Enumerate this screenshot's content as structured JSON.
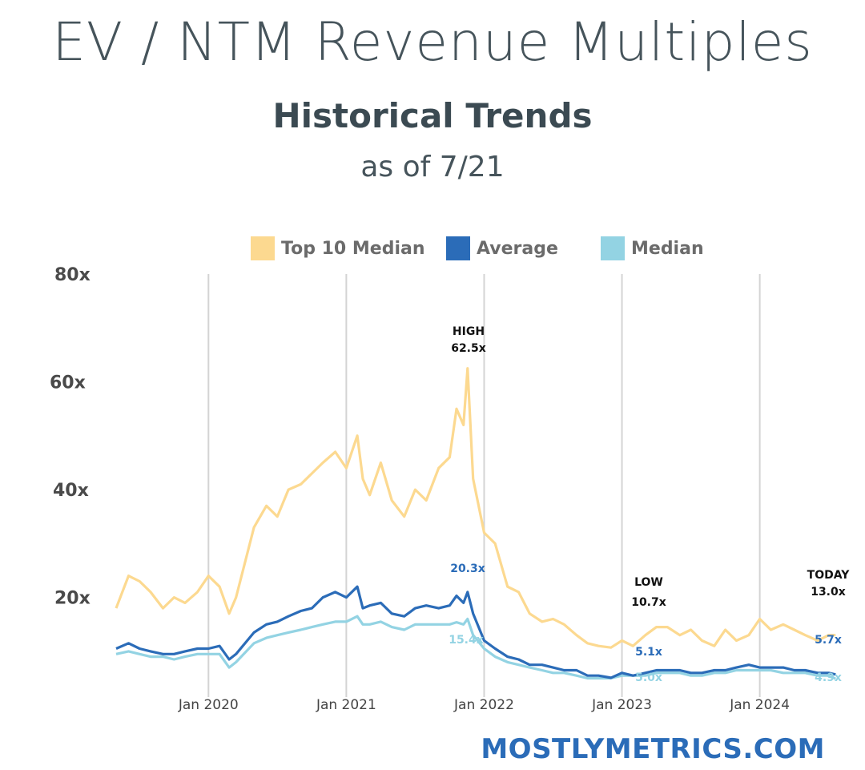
{
  "header": {
    "title": "EV / NTM Revenue Multiples",
    "subtitle": "Historical Trends",
    "as_of": "as of 7/21"
  },
  "legend": [
    {
      "label": "Top 10 Median",
      "color": "#fcd990"
    },
    {
      "label": "Average",
      "color": "#2b6cb8"
    },
    {
      "label": "Median",
      "color": "#93d3e3"
    }
  ],
  "brand": "MOSTLYMETRICS.COM",
  "chart_data": {
    "type": "line",
    "y_ticks": [
      "80x",
      "60x",
      "40x",
      "20x"
    ],
    "y_tick_values": [
      80,
      60,
      40,
      20
    ],
    "ylim": [
      3,
      80
    ],
    "x_ticks": [
      "Jan 2020",
      "Jan 2021",
      "Jan 2022",
      "Jan 2023",
      "Jan 2024"
    ],
    "x_tick_values": [
      2020.0,
      2021.0,
      2022.0,
      2023.0,
      2024.0
    ],
    "xlim": [
      2019.33,
      2024.56
    ],
    "grid": "vertical",
    "legend_position": "top",
    "series": [
      {
        "name": "Top 10 Median",
        "color": "#fcd990",
        "x": [
          2019.33,
          2019.42,
          2019.5,
          2019.58,
          2019.67,
          2019.75,
          2019.83,
          2019.92,
          2020.0,
          2020.08,
          2020.15,
          2020.2,
          2020.33,
          2020.42,
          2020.5,
          2020.58,
          2020.67,
          2020.75,
          2020.83,
          2020.92,
          2021.0,
          2021.08,
          2021.12,
          2021.17,
          2021.25,
          2021.33,
          2021.42,
          2021.5,
          2021.58,
          2021.67,
          2021.75,
          2021.8,
          2021.85,
          2021.88,
          2021.92,
          2022.0,
          2022.08,
          2022.17,
          2022.25,
          2022.33,
          2022.42,
          2022.5,
          2022.58,
          2022.67,
          2022.75,
          2022.83,
          2022.92,
          2023.0,
          2023.08,
          2023.17,
          2023.25,
          2023.33,
          2023.42,
          2023.5,
          2023.58,
          2023.67,
          2023.75,
          2023.83,
          2023.92,
          2024.0,
          2024.08,
          2024.17,
          2024.25,
          2024.33,
          2024.42,
          2024.5,
          2024.55
        ],
        "values": [
          18,
          24,
          23,
          21,
          18,
          20,
          19,
          21,
          24,
          22,
          17,
          20,
          33,
          37,
          35,
          40,
          41,
          43,
          45,
          47,
          44,
          50,
          42,
          39,
          45,
          38,
          35,
          40,
          38,
          44,
          46,
          55,
          52,
          62.5,
          42,
          32,
          30,
          22,
          21,
          17,
          15.5,
          16,
          15,
          13,
          11.5,
          11,
          10.7,
          12,
          11,
          13,
          14.5,
          14.5,
          13,
          14,
          12,
          11,
          14,
          12,
          13,
          16,
          14,
          15,
          14,
          13,
          12,
          13,
          13.0
        ]
      },
      {
        "name": "Average",
        "color": "#2b6cb8",
        "x": [
          2019.33,
          2019.42,
          2019.5,
          2019.58,
          2019.67,
          2019.75,
          2019.83,
          2019.92,
          2020.0,
          2020.08,
          2020.15,
          2020.2,
          2020.33,
          2020.42,
          2020.5,
          2020.58,
          2020.67,
          2020.75,
          2020.83,
          2020.92,
          2021.0,
          2021.08,
          2021.12,
          2021.17,
          2021.25,
          2021.33,
          2021.42,
          2021.5,
          2021.58,
          2021.67,
          2021.75,
          2021.8,
          2021.85,
          2021.88,
          2021.92,
          2022.0,
          2022.08,
          2022.17,
          2022.25,
          2022.33,
          2022.42,
          2022.5,
          2022.58,
          2022.67,
          2022.75,
          2022.83,
          2022.92,
          2023.0,
          2023.08,
          2023.17,
          2023.25,
          2023.33,
          2023.42,
          2023.5,
          2023.58,
          2023.67,
          2023.75,
          2023.83,
          2023.92,
          2024.0,
          2024.08,
          2024.17,
          2024.25,
          2024.33,
          2024.42,
          2024.5,
          2024.55
        ],
        "values": [
          10.5,
          11.5,
          10.5,
          10,
          9.5,
          9.5,
          10,
          10.5,
          10.5,
          11,
          8.5,
          9.5,
          13.5,
          15,
          15.5,
          16.5,
          17.5,
          18,
          20,
          21,
          20,
          22,
          18,
          18.5,
          19,
          17,
          16.5,
          18,
          18.5,
          18,
          18.5,
          20.3,
          19,
          21,
          17,
          12,
          10.5,
          9,
          8.5,
          7.5,
          7.5,
          7,
          6.5,
          6.5,
          5.5,
          5.5,
          5.1,
          6,
          5.5,
          6,
          6.5,
          6.5,
          6.5,
          6,
          6,
          6.5,
          6.5,
          7,
          7.5,
          7,
          7,
          7,
          6.5,
          6.5,
          6,
          6,
          5.7
        ]
      },
      {
        "name": "Median",
        "color": "#93d3e3",
        "x": [
          2019.33,
          2019.42,
          2019.5,
          2019.58,
          2019.67,
          2019.75,
          2019.83,
          2019.92,
          2020.0,
          2020.08,
          2020.15,
          2020.2,
          2020.33,
          2020.42,
          2020.5,
          2020.58,
          2020.67,
          2020.75,
          2020.83,
          2020.92,
          2021.0,
          2021.08,
          2021.12,
          2021.17,
          2021.25,
          2021.33,
          2021.42,
          2021.5,
          2021.58,
          2021.67,
          2021.75,
          2021.8,
          2021.85,
          2021.88,
          2021.92,
          2022.0,
          2022.08,
          2022.17,
          2022.25,
          2022.33,
          2022.42,
          2022.5,
          2022.58,
          2022.67,
          2022.75,
          2022.83,
          2022.92,
          2023.0,
          2023.08,
          2023.17,
          2023.25,
          2023.33,
          2023.42,
          2023.5,
          2023.58,
          2023.67,
          2023.75,
          2023.83,
          2023.92,
          2024.0,
          2024.08,
          2024.17,
          2024.25,
          2024.33,
          2024.42,
          2024.5,
          2024.55
        ],
        "values": [
          9.5,
          10,
          9.5,
          9,
          9,
          8.5,
          9,
          9.5,
          9.5,
          9.5,
          7,
          8,
          11.5,
          12.5,
          13,
          13.5,
          14,
          14.5,
          15,
          15.5,
          15.5,
          16.5,
          15,
          15,
          15.5,
          14.5,
          14,
          15,
          15,
          15,
          15,
          15.4,
          15,
          16,
          13,
          10.5,
          9,
          8,
          7.5,
          7,
          6.5,
          6,
          6,
          5.5,
          5,
          5,
          5.0,
          5.5,
          5.5,
          5.5,
          6,
          6,
          6,
          5.5,
          5.5,
          6,
          6,
          6.5,
          6.5,
          6.5,
          6.5,
          6,
          6,
          6,
          5.5,
          5.5,
          4.9
        ]
      }
    ],
    "annotations": [
      {
        "label": "HIGH",
        "value": "62.5x",
        "color": "#111111"
      },
      {
        "label": "LOW",
        "value": "10.7x",
        "color": "#111111"
      },
      {
        "label": "TODAY",
        "value": "13.0x",
        "color": "#111111"
      },
      {
        "label": "",
        "value": "20.3x",
        "color": "#2b6cb8"
      },
      {
        "label": "",
        "value": "15.4x",
        "color": "#93d3e3"
      },
      {
        "label": "",
        "value": "5.1x",
        "color": "#2b6cb8"
      },
      {
        "label": "",
        "value": "5.0x",
        "color": "#93d3e3"
      },
      {
        "label": "",
        "value": "5.7x",
        "color": "#2b6cb8"
      },
      {
        "label": "",
        "value": "4.9x",
        "color": "#93d3e3"
      }
    ]
  }
}
